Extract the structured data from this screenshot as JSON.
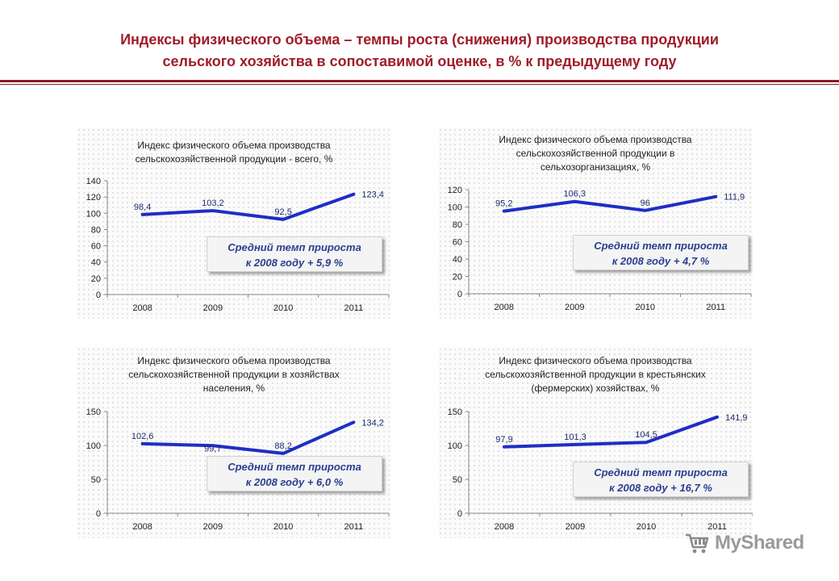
{
  "header": {
    "title_line1": "Индексы физического объема – темпы роста (снижения) производства продукции",
    "title_line2": "сельского хозяйства в сопоставимой оценке, в % к предыдущему году"
  },
  "colors": {
    "title": "#a01d2a",
    "line": "#1f2ec4",
    "note_text": "#2b3e8f"
  },
  "notes": [
    {
      "line1": "Средний темп прироста",
      "line2": "к 2008 году + 5,9 %"
    },
    {
      "line1": "Средний темп прироста",
      "line2": "к 2008 году + 4,7 %"
    },
    {
      "line1": "Средний темп прироста",
      "line2": "к 2008 году + 6,0 %"
    },
    {
      "line1": "Средний темп прироста",
      "line2": "к 2008 году + 16,7 %"
    }
  ],
  "chart_data": [
    {
      "type": "line",
      "title_lines": [
        "Индекс физического объема производства",
        "сельскохозяйственной продукции - всего,  %"
      ],
      "categories": [
        "2008",
        "2009",
        "2010",
        "2011"
      ],
      "values": [
        98.4,
        103.2,
        92.5,
        123.4
      ],
      "labels": [
        "98,4",
        "103,2",
        "92,5",
        "123,4"
      ],
      "ylim": [
        0,
        140
      ],
      "yticks": [
        0,
        20,
        40,
        60,
        80,
        100,
        120,
        140
      ],
      "grid": false,
      "legend": "none"
    },
    {
      "type": "line",
      "title_lines": [
        "Индекс физического объема производства",
        "сельскохозяйственной продукции в",
        "сельхозорганизациях,  %"
      ],
      "categories": [
        "2008",
        "2009",
        "2010",
        "2011"
      ],
      "values": [
        95.2,
        106.3,
        96,
        111.9
      ],
      "labels": [
        "95,2",
        "106,3",
        "96",
        "111,9"
      ],
      "ylim": [
        0,
        120
      ],
      "yticks": [
        0,
        20,
        40,
        60,
        80,
        100,
        120
      ],
      "grid": false,
      "legend": "none"
    },
    {
      "type": "line",
      "title_lines": [
        "Индекс физического объема производства",
        "сельскохозяйственной продукции в хозяйствах",
        "населения,  %"
      ],
      "categories": [
        "2008",
        "2009",
        "2010",
        "2011"
      ],
      "values": [
        102.6,
        99.7,
        88.2,
        134.2
      ],
      "labels": [
        "102,6",
        "99,7",
        "88,2",
        "134,2"
      ],
      "ylim": [
        0,
        150
      ],
      "yticks": [
        0,
        50,
        100,
        150
      ],
      "grid": false,
      "legend": "none"
    },
    {
      "type": "line",
      "title_lines": [
        "Индекс физического объема производства",
        "сельскохозяйственной продукции в крестьянских",
        "(фермерских) хозяйствах,  %"
      ],
      "categories": [
        "2008",
        "2009",
        "2010",
        "2011"
      ],
      "values": [
        97.9,
        101.3,
        104.5,
        141.9
      ],
      "labels": [
        "97,9",
        "101,3",
        "104,5",
        "141,9"
      ],
      "ylim": [
        0,
        150
      ],
      "yticks": [
        0,
        50,
        100,
        150
      ],
      "grid": false,
      "legend": "none"
    }
  ],
  "watermark": {
    "text": "MyShared"
  }
}
